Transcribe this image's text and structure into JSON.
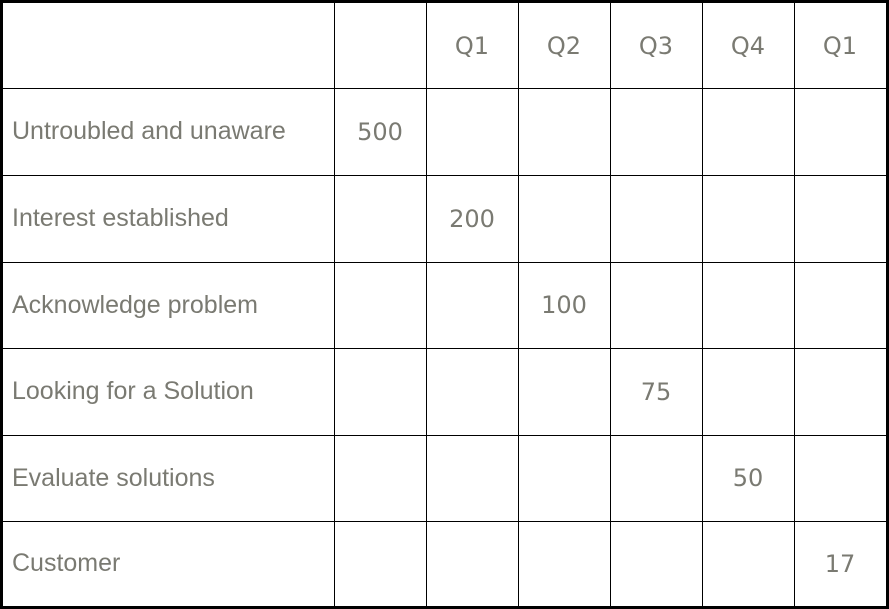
{
  "table": {
    "header": [
      "",
      "",
      "Q1",
      "Q2",
      "Q3",
      "Q4",
      "Q1"
    ],
    "rows": [
      [
        "Untroubled and unaware",
        "500",
        "",
        "",
        "",
        "",
        ""
      ],
      [
        "Interest established",
        "",
        "200",
        "",
        "",
        "",
        ""
      ],
      [
        "Acknowledge problem",
        "",
        "",
        "100",
        "",
        "",
        ""
      ],
      [
        "Looking for a Solution",
        "",
        "",
        "",
        "75",
        "",
        ""
      ],
      [
        "Evaluate solutions",
        "",
        "",
        "",
        "",
        "50",
        ""
      ],
      [
        "Customer",
        "",
        "",
        "",
        "",
        "",
        "17"
      ]
    ]
  },
  "colors": {
    "text": "#7a7a72",
    "border": "#000000",
    "background": "#ffffff"
  }
}
